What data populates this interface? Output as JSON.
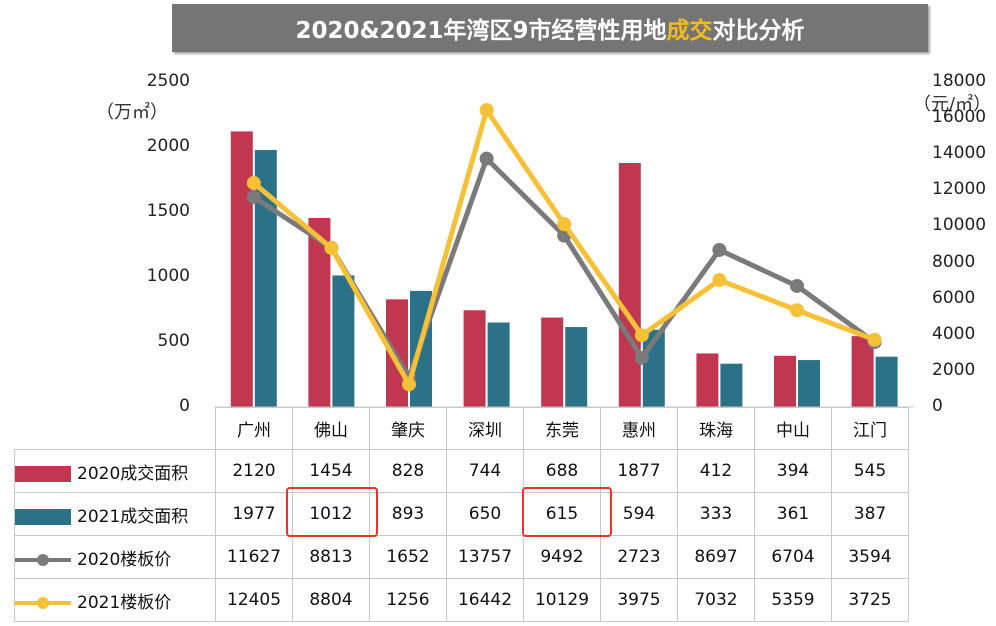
{
  "title": {
    "part1": "2020&2021年湾区9市经营性用地",
    "highlight": "成交",
    "part2": "对比分析"
  },
  "chart_data": {
    "type": "bar",
    "categories": [
      "广州",
      "佛山",
      "肇庆",
      "深圳",
      "东莞",
      "惠州",
      "珠海",
      "中山",
      "江门"
    ],
    "bar_series": [
      {
        "name": "2020成交面积",
        "color": "#c0374f",
        "values": [
          2120,
          1454,
          828,
          744,
          688,
          1877,
          412,
          394,
          545
        ]
      },
      {
        "name": "2021成交面积",
        "color": "#2b7289",
        "values": [
          1977,
          1012,
          893,
          650,
          615,
          594,
          333,
          361,
          387
        ]
      }
    ],
    "line_series": [
      {
        "name": "2020楼板价",
        "color": "#7a7a7a",
        "values": [
          11627,
          8813,
          1652,
          13757,
          9492,
          2723,
          8697,
          6704,
          3594
        ]
      },
      {
        "name": "2021楼板价",
        "color": "#f7c137",
        "values": [
          12405,
          8804,
          1256,
          16442,
          10129,
          3975,
          7032,
          5359,
          3725
        ]
      }
    ],
    "y_left": {
      "unit": "（万㎡）",
      "min": 0,
      "max": 2500,
      "ticks": [
        "0",
        "500",
        "1000",
        "1500",
        "2000",
        "2500"
      ]
    },
    "y_right": {
      "unit": "（元/㎡）",
      "min": 0,
      "max": 18000,
      "ticks": [
        "0",
        "2000",
        "4000",
        "6000",
        "8000",
        "10000",
        "12000",
        "14000",
        "16000",
        "18000"
      ]
    },
    "highlighted_cells": [
      "2021成交面积 · 佛山",
      "2021成交面积 · 东莞"
    ]
  },
  "table": {
    "rows": [
      {
        "label": "2020成交面积",
        "values": [
          "2120",
          "1454",
          "828",
          "744",
          "688",
          "1877",
          "412",
          "394",
          "545"
        ]
      },
      {
        "label": "2021成交面积",
        "values": [
          "1977",
          "1012",
          "893",
          "650",
          "615",
          "594",
          "333",
          "361",
          "387"
        ]
      },
      {
        "label": "2020楼板价",
        "values": [
          "11627",
          "8813",
          "1652",
          "13757",
          "9492",
          "2723",
          "8697",
          "6704",
          "3594"
        ]
      },
      {
        "label": "2021楼板价",
        "values": [
          "12405",
          "8804",
          "1256",
          "16442",
          "10129",
          "3975",
          "7032",
          "5359",
          "3725"
        ]
      }
    ]
  }
}
